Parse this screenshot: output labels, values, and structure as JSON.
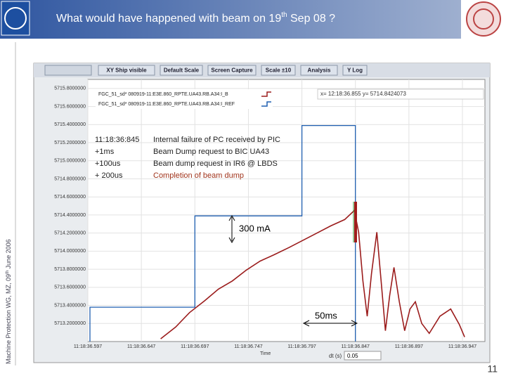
{
  "header": {
    "title_main": "What would have happened with beam on 19",
    "title_sup": "th",
    "title_end": " Sep 08 ?"
  },
  "side_note": {
    "text": "Machine Protection WG, MZ, 09",
    "sup": "th",
    "end": " June 2006"
  },
  "page_number": "11",
  "toolbar": [
    "XY Ship visible",
    "Default Scale",
    "Screen Capture",
    "Scale ±10",
    "Analysis",
    "Y Log"
  ],
  "cursor_readout": "x= 12:18:36.855   y= 5714.8424073",
  "annotations": {
    "events": [
      [
        "11:18:36:845",
        "Internal failure of PC received by PIC"
      ],
      [
        "+1ms",
        "Beam Dump request to BIC UA43"
      ],
      [
        "+100us",
        "Beam dump request in IR6 @ LBDS"
      ],
      [
        "+ 200us",
        "Completion of beam dump"
      ]
    ],
    "current_step": "300 mA",
    "time_step": "50ms"
  },
  "x_axis_label": "Time",
  "dt_label": "dt (s)",
  "dt_value": "0.05",
  "plot": {
    "type": "line",
    "xlim": [
      36.597,
      36.968
    ],
    "ylim": [
      5713.0,
      5715.9
    ],
    "xticks": [
      {
        "value": 36.597,
        "label": "11:18:36.597"
      },
      {
        "value": 36.647,
        "label": "11:18:36.647"
      },
      {
        "value": 36.697,
        "label": "11:18:36.697"
      },
      {
        "value": 36.747,
        "label": "11:18:36.747"
      },
      {
        "value": 36.797,
        "label": "11:18:36.797"
      },
      {
        "value": 36.847,
        "label": "11:18:36.847"
      },
      {
        "value": 36.897,
        "label": "11:18:36.897"
      },
      {
        "value": 36.947,
        "label": "11:18:36.947"
      }
    ],
    "yticks": [
      {
        "value": 5715.8,
        "label": "5715.8000000"
      },
      {
        "value": 5715.6,
        "label": "5715.6000000"
      },
      {
        "value": 5715.4,
        "label": "5715.4000000"
      },
      {
        "value": 5715.2,
        "label": "5715.2000000"
      },
      {
        "value": 5715.0,
        "label": "5715.0000000"
      },
      {
        "value": 5714.8,
        "label": "5714.8000000"
      },
      {
        "value": 5714.6,
        "label": "5714.6000000"
      },
      {
        "value": 5714.4,
        "label": "5714.4000000"
      },
      {
        "value": 5714.2,
        "label": "5714.2000000"
      },
      {
        "value": 5714.0,
        "label": "5714.0000000"
      },
      {
        "value": 5713.8,
        "label": "5713.8000000"
      },
      {
        "value": 5713.6,
        "label": "5713.6000000"
      },
      {
        "value": 5713.4,
        "label": "5713.4000000"
      },
      {
        "value": 5713.2,
        "label": "5713.2000000"
      }
    ],
    "grid": true,
    "series": [
      {
        "name": "FGC_51_sd* 080919-11:E3E.860_RPTE.UA43.RB.A34:I_B",
        "color": "#9b1c1c",
        "x": [
          36.665,
          36.679,
          36.692,
          36.706,
          36.719,
          36.732,
          36.745,
          36.758,
          36.771,
          36.785,
          36.798,
          36.811,
          36.824,
          36.837,
          36.846,
          36.85,
          36.854,
          36.858,
          36.862,
          36.867,
          36.871,
          36.875,
          36.879,
          36.883,
          36.888,
          36.893,
          36.898,
          36.903,
          36.909,
          36.916,
          36.926,
          36.936,
          36.944,
          36.949
        ],
        "values": [
          5713.03,
          5713.16,
          5713.32,
          5713.45,
          5713.58,
          5713.67,
          5713.79,
          5713.89,
          5713.96,
          5714.04,
          5714.12,
          5714.2,
          5714.28,
          5714.35,
          5714.45,
          5714.21,
          5713.67,
          5713.28,
          5713.75,
          5714.21,
          5713.67,
          5713.12,
          5713.51,
          5713.82,
          5713.44,
          5713.12,
          5713.36,
          5713.44,
          5713.2,
          5713.09,
          5713.28,
          5713.36,
          5713.19,
          5713.05
        ]
      },
      {
        "name": "FGC_51_sd* 080919-11:E3E.860_RPTE.UA43.RB.A34:I_REF",
        "color": "#1f5fb0",
        "x": [
          36.599,
          36.599,
          36.697,
          36.697,
          36.797,
          36.797,
          36.847,
          36.847
        ],
        "values": [
          5713.0,
          5713.38,
          5713.38,
          5714.39,
          5714.39,
          5715.39,
          5715.39,
          5713.0
        ]
      }
    ]
  }
}
